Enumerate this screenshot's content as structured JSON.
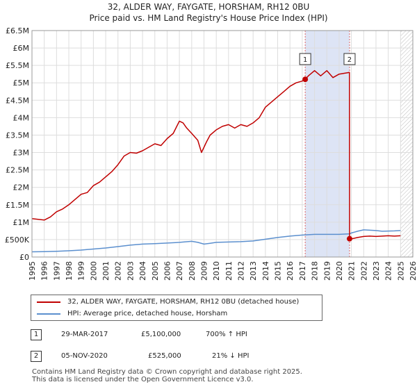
{
  "header": {
    "line1": "32, ALDER WAY, FAYGATE, HORSHAM, RH12 0BU",
    "line2": "Price paid vs. HM Land Registry's House Price Index (HPI)"
  },
  "colors": {
    "property": "#c00000",
    "hpi": "#5b8fce",
    "shade": "#dde4f5",
    "grid": "#dddddd",
    "marker_line": "#e06666"
  },
  "legend": {
    "property_label": "32, ALDER WAY, FAYGATE, HORSHAM, RH12 0BU (detached house)",
    "hpi_label": "HPI: Average price, detached house, Horsham"
  },
  "transactions": [
    {
      "num": "1",
      "date": "29-MAR-2017",
      "price": "£5,100,000",
      "change": "700% ↑ HPI"
    },
    {
      "num": "2",
      "date": "05-NOV-2020",
      "price": "£525,000",
      "change": "21% ↓ HPI"
    }
  ],
  "footer": {
    "line1": "Contains HM Land Registry data © Crown copyright and database right 2025.",
    "line2": "This data is licensed under the Open Government Licence v3.0."
  },
  "chart_data": {
    "type": "line",
    "title": "32, ALDER WAY, FAYGATE, HORSHAM, RH12 0BU",
    "subtitle": "Price paid vs. HM Land Registry's House Price Index (HPI)",
    "xlabel": "",
    "ylabel": "",
    "xlim": [
      1995,
      2026
    ],
    "ylim": [
      0,
      6500000
    ],
    "y_ticks": [
      0,
      500000,
      1000000,
      1500000,
      2000000,
      2500000,
      3000000,
      3500000,
      4000000,
      4500000,
      5000000,
      5500000,
      6000000,
      6500000
    ],
    "y_tick_labels": [
      "£0",
      "£500K",
      "£1M",
      "£1.5M",
      "£2M",
      "£2.5M",
      "£3M",
      "£3.5M",
      "£4M",
      "£4.5M",
      "£5M",
      "£5.5M",
      "£6M",
      "£6.5M"
    ],
    "x_ticks": [
      1995,
      1996,
      1997,
      1998,
      1999,
      2000,
      2001,
      2002,
      2003,
      2004,
      2005,
      2006,
      2007,
      2008,
      2009,
      2010,
      2011,
      2012,
      2013,
      2014,
      2015,
      2016,
      2017,
      2018,
      2019,
      2020,
      2021,
      2022,
      2023,
      2024,
      2025,
      2026
    ],
    "x_tick_labels": [
      "1995",
      "1996",
      "1997",
      "1998",
      "1999",
      "2000",
      "2001",
      "2002",
      "2003",
      "2004",
      "2005",
      "2006",
      "2007",
      "2008",
      "2009",
      "2010",
      "2011",
      "2012",
      "2013",
      "2014",
      "2015",
      "2016",
      "2017",
      "2018",
      "2019",
      "2020",
      "2021",
      "2022",
      "2023",
      "2024",
      "2025",
      "2026"
    ],
    "grid": true,
    "legend_position": "below",
    "shaded_region": [
      2017.24,
      2020.85
    ],
    "hatched_region": [
      2025.0,
      2026
    ],
    "series": [
      {
        "name": "32, ALDER WAY, FAYGATE, HORSHAM, RH12 0BU (detached house)",
        "color": "#c00000",
        "x": [
          1995,
          1995.5,
          1996,
          1996.5,
          1997,
          1997.5,
          1998,
          1998.5,
          1999,
          1999.5,
          2000,
          2000.5,
          2001,
          2001.5,
          2002,
          2002.5,
          2003,
          2003.5,
          2004,
          2004.5,
          2005,
          2005.5,
          2006,
          2006.5,
          2007,
          2007.3,
          2007.6,
          2008,
          2008.5,
          2008.8,
          2009,
          2009.2,
          2009.5,
          2010,
          2010.5,
          2011,
          2011.5,
          2012,
          2012.5,
          2013,
          2013.5,
          2014,
          2014.5,
          2015,
          2015.5,
          2016,
          2016.5,
          2017,
          2017.24,
          2017.5,
          2018,
          2018.5,
          2019,
          2019.5,
          2020,
          2020.5,
          2020.84,
          2020.85,
          2021,
          2021.5,
          2022,
          2022.5,
          2023,
          2023.5,
          2024,
          2024.5,
          2025
        ],
        "values": [
          1100000,
          1080000,
          1060000,
          1150000,
          1300000,
          1380000,
          1500000,
          1650000,
          1800000,
          1850000,
          2050000,
          2150000,
          2300000,
          2450000,
          2650000,
          2900000,
          3000000,
          2980000,
          3050000,
          3150000,
          3250000,
          3200000,
          3400000,
          3550000,
          3900000,
          3850000,
          3700000,
          3550000,
          3350000,
          3000000,
          3150000,
          3300000,
          3500000,
          3650000,
          3750000,
          3800000,
          3700000,
          3800000,
          3750000,
          3850000,
          4000000,
          4300000,
          4450000,
          4600000,
          4750000,
          4900000,
          5000000,
          5050000,
          5100000,
          5200000,
          5350000,
          5200000,
          5350000,
          5150000,
          5250000,
          5280000,
          5300000,
          525000,
          520000,
          560000,
          590000,
          600000,
          590000,
          600000,
          610000,
          600000,
          610000
        ]
      },
      {
        "name": "HPI: Average price, detached house, Horsham",
        "color": "#5b8fce",
        "x": [
          1995,
          1996,
          1997,
          1998,
          1999,
          2000,
          2001,
          2002,
          2003,
          2004,
          2005,
          2006,
          2007,
          2008,
          2008.5,
          2009,
          2009.5,
          2010,
          2011,
          2012,
          2013,
          2014,
          2015,
          2016,
          2017,
          2018,
          2019,
          2020,
          2020.85,
          2021,
          2021.5,
          2022,
          2022.5,
          2023,
          2023.5,
          2024,
          2024.5,
          2025
        ],
        "values": [
          150000,
          155000,
          165000,
          180000,
          200000,
          230000,
          260000,
          300000,
          340000,
          370000,
          385000,
          400000,
          420000,
          450000,
          420000,
          370000,
          395000,
          420000,
          430000,
          440000,
          460000,
          510000,
          560000,
          600000,
          630000,
          650000,
          650000,
          650000,
          665000,
          690000,
          740000,
          780000,
          770000,
          760000,
          740000,
          745000,
          750000,
          760000
        ]
      }
    ],
    "annotations": [
      {
        "label": "1",
        "x": 2017.24,
        "y": 5100000
      },
      {
        "label": "2",
        "x": 2020.85,
        "y": 525000
      }
    ]
  }
}
